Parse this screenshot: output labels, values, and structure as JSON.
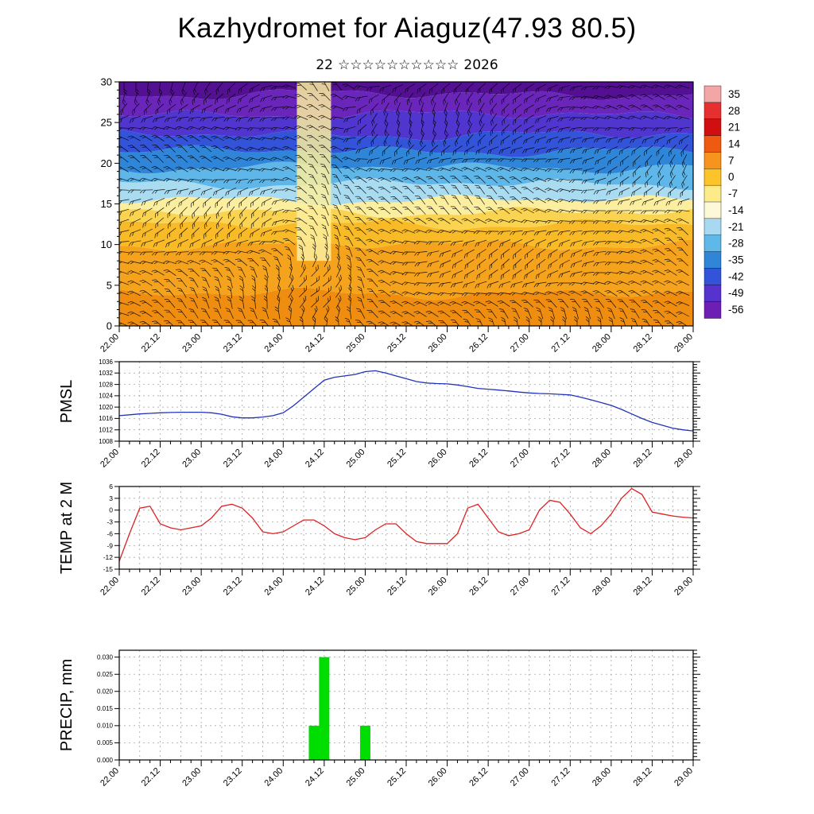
{
  "page": {
    "background": "#ffffff"
  },
  "header": {
    "title": "Kazhydromet for Aiaguz(47.93 80.5)",
    "subtitle_day": "22",
    "subtitle_stars": "☆☆☆☆☆☆☆☆☆☆",
    "subtitle_year": "2026"
  },
  "chart_data": [
    {
      "id": "cross_section",
      "type": "heatmap",
      "title": "Time-height temperature cross-section with wind barbs",
      "ylim": [
        0,
        30
      ],
      "yticks": [
        0,
        5,
        10,
        15,
        20,
        25,
        30
      ],
      "x_hours_range": [
        0,
        168
      ],
      "x_tick_labels": [
        "22.00",
        "22.12",
        "23.00",
        "23.12",
        "24.00",
        "24.12",
        "25.00",
        "25.12",
        "26.00",
        "26.12",
        "27.00",
        "27.12",
        "28.00",
        "28.12",
        "29.00"
      ],
      "grid": false,
      "bands": [
        {
          "from": 0,
          "to": 4,
          "color": "#ee8d0f"
        },
        {
          "from": 4,
          "to": 10,
          "color": "#f5a31c"
        },
        {
          "from": 10,
          "to": 12.5,
          "color": "#f8bb27"
        },
        {
          "from": 12.5,
          "to": 14,
          "color": "#fad350"
        },
        {
          "from": 14,
          "to": 15.5,
          "color": "#fcee9f"
        },
        {
          "from": 15.5,
          "to": 17.5,
          "color": "#a9dbf1"
        },
        {
          "from": 17.5,
          "to": 19.5,
          "color": "#5fb6e8"
        },
        {
          "from": 19.5,
          "to": 21.5,
          "color": "#2f86d8"
        },
        {
          "from": 21.5,
          "to": 23.5,
          "color": "#3354d8"
        },
        {
          "from": 23.5,
          "to": 26,
          "color": "#5036cf"
        },
        {
          "from": 26,
          "to": 28.5,
          "color": "#6a26bb"
        },
        {
          "from": 28.5,
          "to": 30,
          "color": "#541093"
        }
      ],
      "anomaly_column": {
        "start_hour": 52,
        "end_hour": 62,
        "color": "#fcee9f"
      },
      "overlay": "wind-barbs",
      "colorbar": {
        "labels": [
          35,
          28,
          21,
          14,
          7,
          0,
          -7,
          -14,
          -21,
          -28,
          -35,
          -42,
          -49,
          -56
        ],
        "colors": [
          "#f2a6a6",
          "#e63030",
          "#d01010",
          "#ef5a12",
          "#f7941e",
          "#fcc32a",
          "#fdeb8a",
          "#fdf8d8",
          "#a8d9f0",
          "#5fb8e8",
          "#2f86d8",
          "#3354d8",
          "#5633cf",
          "#6d1fb4"
        ]
      }
    },
    {
      "id": "pmsl",
      "type": "line",
      "ylabel": "PMSL",
      "color": "#2233bb",
      "ylim": [
        1008,
        1036
      ],
      "yticks": [
        1008,
        1012,
        1016,
        1020,
        1024,
        1028,
        1032,
        1036
      ],
      "grid": true,
      "x_step_hours": 3,
      "x_tick_labels": [
        "22.00",
        "22.12",
        "23.00",
        "23.12",
        "24.00",
        "24.12",
        "25.00",
        "25.12",
        "26.00",
        "26.12",
        "27.00",
        "27.12",
        "28.00",
        "28.12",
        "29.00"
      ],
      "values": [
        1017,
        1017.3,
        1017.6,
        1017.8,
        1018,
        1018.1,
        1018.2,
        1018.2,
        1018.2,
        1018,
        1017.5,
        1016.6,
        1016.2,
        1016.2,
        1016.5,
        1017,
        1018,
        1020.5,
        1023.5,
        1026.5,
        1029.5,
        1030.5,
        1031,
        1031.5,
        1032.5,
        1032.8,
        1032,
        1031,
        1030,
        1029,
        1028.5,
        1028.3,
        1028.2,
        1027.8,
        1027.2,
        1026.6,
        1026.3,
        1026,
        1025.7,
        1025.3,
        1025,
        1024.8,
        1024.7,
        1024.5,
        1024.3,
        1023.5,
        1022.6,
        1021.6,
        1020.6,
        1019.2,
        1017.6,
        1016,
        1014.6,
        1013.6,
        1012.6,
        1012,
        1011.6
      ]
    },
    {
      "id": "temp2m",
      "type": "line",
      "ylabel": "TEMP at 2 M",
      "color": "#dd2222",
      "ylim": [
        -15,
        6
      ],
      "yticks": [
        6,
        3,
        0,
        -3,
        -6,
        -9,
        -12,
        -15
      ],
      "grid": true,
      "x_step_hours": 3,
      "x_tick_labels": [
        "22.00",
        "22.12",
        "23.00",
        "23.12",
        "24.00",
        "24.12",
        "25.00",
        "25.12",
        "26.00",
        "26.12",
        "27.00",
        "27.12",
        "28.00",
        "28.12",
        "29.00"
      ],
      "values": [
        -13,
        -6,
        0.5,
        1,
        -3.5,
        -4.5,
        -5,
        -4.5,
        -4,
        -2,
        1,
        1.5,
        0.5,
        -2,
        -5.5,
        -6,
        -5.5,
        -4,
        -2.5,
        -2.5,
        -4,
        -6,
        -7,
        -7.5,
        -7,
        -5,
        -3.5,
        -3.5,
        -6,
        -8,
        -8.5,
        -8.5,
        -8.5,
        -6,
        0.5,
        1.5,
        -2,
        -5.5,
        -6.5,
        -6,
        -5,
        0,
        2.5,
        2,
        -1,
        -4.5,
        -6,
        -4,
        -1,
        3,
        5.5,
        4,
        -0.5,
        -1,
        -1.5,
        -1.8,
        -2
      ]
    },
    {
      "id": "precip",
      "type": "bar",
      "ylabel": "PRECIP, mm",
      "color": "#00dd00",
      "ylim": [
        0,
        0.032
      ],
      "yticks": [
        0.03,
        0.025,
        0.02,
        0.015,
        0.01,
        0.005,
        0.0
      ],
      "grid": true,
      "x_step_hours": 3,
      "x_tick_labels": [
        "22.00",
        "22.12",
        "23.00",
        "23.12",
        "24.00",
        "24.12",
        "25.00",
        "25.12",
        "26.00",
        "26.12",
        "27.00",
        "27.12",
        "28.00",
        "28.12",
        "29.00"
      ],
      "values": [
        0,
        0,
        0,
        0,
        0,
        0,
        0,
        0,
        0,
        0,
        0,
        0,
        0,
        0,
        0,
        0,
        0,
        0,
        0,
        0.01,
        0.03,
        0,
        0,
        0,
        0.01,
        0,
        0,
        0,
        0,
        0,
        0,
        0,
        0,
        0,
        0,
        0,
        0,
        0,
        0,
        0,
        0,
        0,
        0,
        0,
        0,
        0,
        0,
        0,
        0,
        0,
        0,
        0,
        0,
        0,
        0,
        0,
        0
      ]
    }
  ]
}
